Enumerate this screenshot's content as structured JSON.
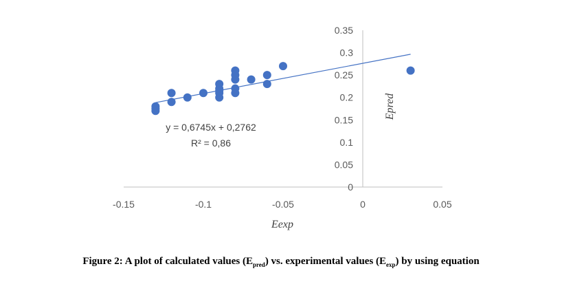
{
  "chart_data": {
    "type": "scatter",
    "xlabel": "Eexp",
    "ylabel": "Epred",
    "xlim": [
      -0.15,
      0.05
    ],
    "ylim": [
      0,
      0.35
    ],
    "x_ticks": [
      "-0.15",
      "-0.1",
      "-0.05",
      "0",
      "0.05"
    ],
    "y_ticks": [
      "0",
      "0.05",
      "0.1",
      "0.15",
      "0.2",
      "0.25",
      "0.3",
      "0.35"
    ],
    "series": [
      {
        "points": [
          [
            -0.13,
            0.17
          ],
          [
            -0.13,
            0.175
          ],
          [
            -0.13,
            0.18
          ],
          [
            -0.12,
            0.19
          ],
          [
            -0.12,
            0.21
          ],
          [
            -0.11,
            0.2
          ],
          [
            -0.1,
            0.21
          ],
          [
            -0.09,
            0.2
          ],
          [
            -0.09,
            0.21
          ],
          [
            -0.09,
            0.215
          ],
          [
            -0.09,
            0.22
          ],
          [
            -0.09,
            0.23
          ],
          [
            -0.08,
            0.21
          ],
          [
            -0.08,
            0.22
          ],
          [
            -0.08,
            0.24
          ],
          [
            -0.08,
            0.25
          ],
          [
            -0.08,
            0.26
          ],
          [
            -0.07,
            0.24
          ],
          [
            -0.06,
            0.23
          ],
          [
            -0.06,
            0.25
          ],
          [
            -0.05,
            0.27
          ],
          [
            0.03,
            0.26
          ]
        ],
        "color": "#4472C4"
      }
    ],
    "trendline": {
      "slope": 0.6745,
      "intercept": 0.2762,
      "x_range": [
        -0.13,
        0.03
      ],
      "color": "#4472C4",
      "equation_label": "y = 0,6745x + 0,2762",
      "r2_label": "R² = 0,86"
    },
    "grid": false,
    "legend": "none"
  },
  "caption": {
    "prefix": "Figure 2: A plot of calculated values (E",
    "sub1": "pred",
    "middle": ") vs. experimental values (E",
    "sub2": "exp",
    "suffix": ") by using equation"
  }
}
